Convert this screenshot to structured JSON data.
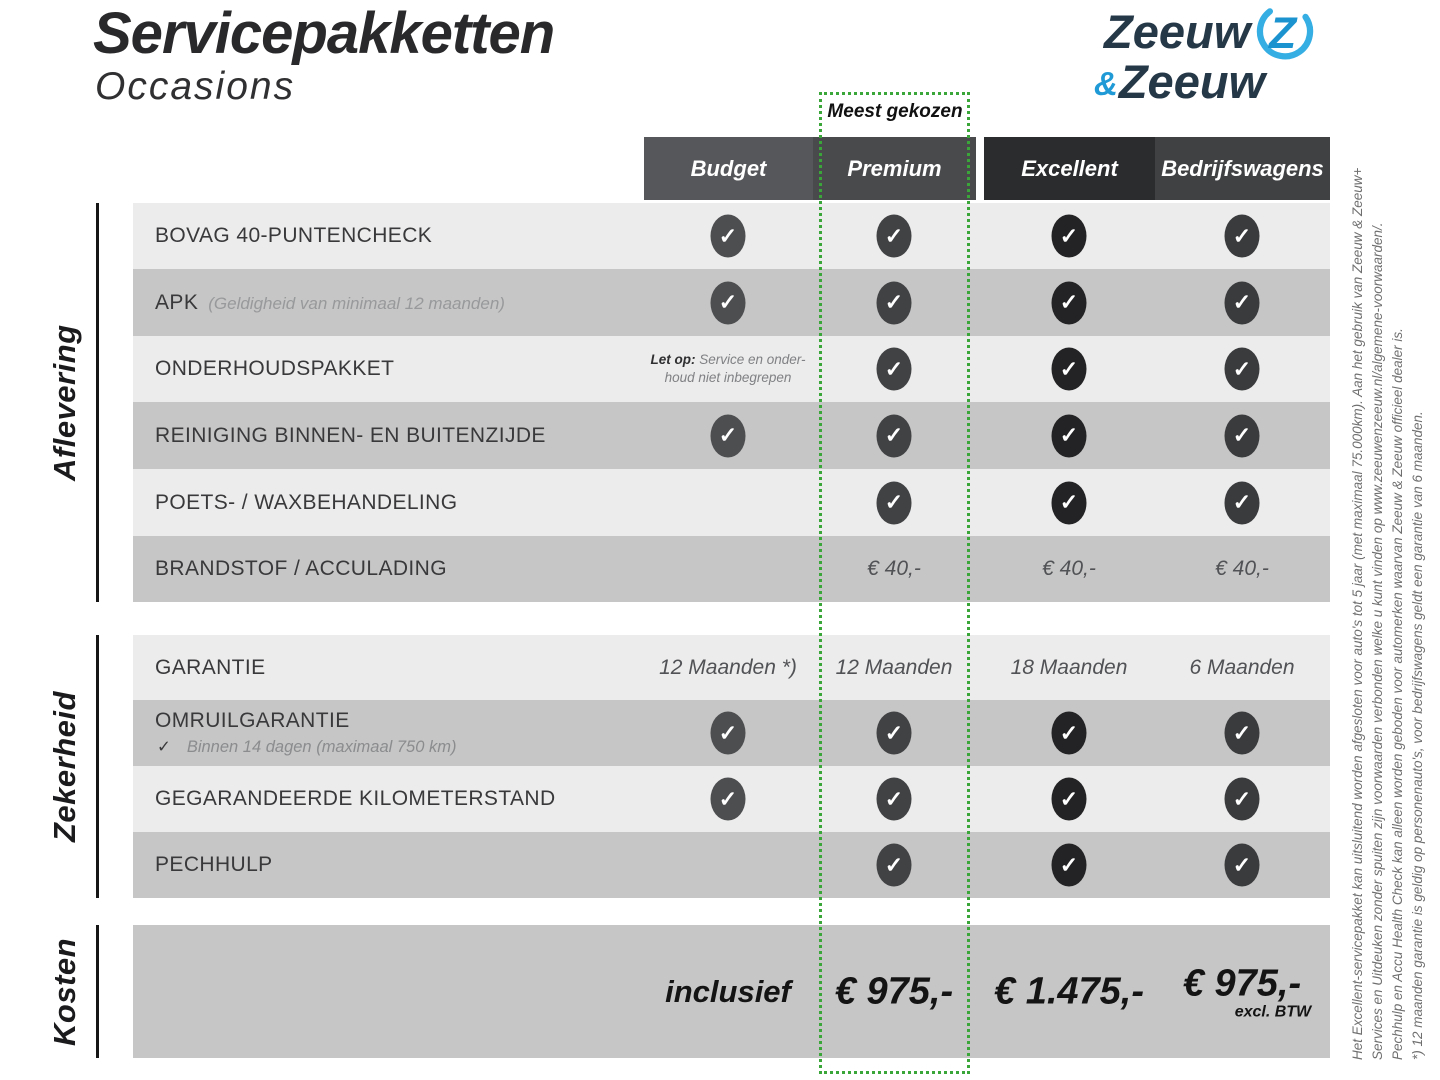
{
  "header": {
    "title": "Servicepakketten",
    "subtitle": "Occasions",
    "most_chosen": "Meest gekozen",
    "logo": {
      "word1": "Zeeuw",
      "ampersand": "&",
      "word2": "Zeeuw",
      "navy": "#253848",
      "blue": "#1f9ad6"
    }
  },
  "highlight_color": "#3aa63a",
  "checkmark": "✓",
  "columns": [
    {
      "label": "Budget",
      "header_bg": "#56575a",
      "check_bg": "#4d4e50"
    },
    {
      "label": "Premium",
      "header_bg": "#494a4c",
      "check_bg": "#414244",
      "highlighted": true
    },
    {
      "label": "Excellent",
      "header_bg": "#2b2c2e",
      "check_bg": "#232325"
    },
    {
      "label": "Bedrijfswagens",
      "header_bg": "#404143",
      "check_bg": "#3a3b3d"
    }
  ],
  "sections": [
    {
      "label": "Aflevering",
      "rows": [
        {
          "label": "BOVAG 40-PUNTENCHECK",
          "cells": [
            {
              "type": "check"
            },
            {
              "type": "check"
            },
            {
              "type": "check"
            },
            {
              "type": "check"
            }
          ]
        },
        {
          "label": "APK",
          "sublabel_inline": "(Geldigheid van minimaal 12 maanden)",
          "cells": [
            {
              "type": "check"
            },
            {
              "type": "check"
            },
            {
              "type": "check"
            },
            {
              "type": "check"
            }
          ]
        },
        {
          "label": "ONDERHOUDSPAKKET",
          "cells": [
            {
              "type": "note",
              "bold": "Let op:",
              "lines": [
                "Service en onder-",
                "houd niet inbegrepen"
              ]
            },
            {
              "type": "check"
            },
            {
              "type": "check"
            },
            {
              "type": "check"
            }
          ]
        },
        {
          "label": "REINIGING BINNEN- EN BUITENZIJDE",
          "cells": [
            {
              "type": "check"
            },
            {
              "type": "check"
            },
            {
              "type": "check"
            },
            {
              "type": "check"
            }
          ]
        },
        {
          "label": "POETS- / WAXBEHANDELING",
          "cells": [
            {
              "type": "empty"
            },
            {
              "type": "check"
            },
            {
              "type": "check"
            },
            {
              "type": "check"
            }
          ]
        },
        {
          "label": "BRANDSTOF / ACCULADING",
          "cells": [
            {
              "type": "empty"
            },
            {
              "type": "text",
              "text": "€ 40,-"
            },
            {
              "type": "text",
              "text": "€ 40,-"
            },
            {
              "type": "text",
              "text": "€ 40,-"
            }
          ]
        }
      ]
    },
    {
      "label": "Zekerheid",
      "rows": [
        {
          "label": "GARANTIE",
          "cells": [
            {
              "type": "text",
              "text": "12 Maanden *)"
            },
            {
              "type": "text",
              "text": "12 Maanden"
            },
            {
              "type": "text",
              "text": "18 Maanden"
            },
            {
              "type": "text",
              "text": "6 Maanden"
            }
          ]
        },
        {
          "label": "OMRUILGARANTIE",
          "sublabel_check": "✓",
          "sublabel_below": "Binnen 14 dagen (maximaal 750 km)",
          "cells": [
            {
              "type": "check"
            },
            {
              "type": "check"
            },
            {
              "type": "check"
            },
            {
              "type": "check"
            }
          ]
        },
        {
          "label": "GEGARANDEERDE KILOMETERSTAND",
          "cells": [
            {
              "type": "check"
            },
            {
              "type": "check"
            },
            {
              "type": "check"
            },
            {
              "type": "check"
            }
          ]
        },
        {
          "label": "PECHHULP",
          "cells": [
            {
              "type": "empty"
            },
            {
              "type": "check"
            },
            {
              "type": "check"
            },
            {
              "type": "check"
            }
          ]
        }
      ]
    },
    {
      "label": "Kosten",
      "rows": [
        {
          "cells": [
            {
              "type": "bigtext",
              "text": "inclusief"
            },
            {
              "type": "price",
              "text": "€ 975,-"
            },
            {
              "type": "price",
              "text": "€ 1.475,-"
            },
            {
              "type": "price",
              "text": "€ 975,-",
              "note": "excl. BTW"
            }
          ]
        }
      ]
    }
  ],
  "disclaimer": [
    "Het Excellent-servicepakket kan uitsluitend worden afgesloten voor auto's tot 5 jaar (met maximaal 75.000km). Aan het gebruik van Zeeuw & Zeeuw+",
    "Services en Uitdeuken zonder spuiten zijn voorwaarden verbonden welke u kunt vinden op www.zeeuwenzeeuw.nl/algemene-voorwaarden/.",
    "Pechhulp en Accu Health Check kan alleen worden geboden voor automerken waarvan Zeeuw & Zeeuw officieel dealer is.",
    "*) 12 maanden garantie is geldig op personenauto's, voor bedrijfswagens geldt een garantie van 6 maanden."
  ]
}
